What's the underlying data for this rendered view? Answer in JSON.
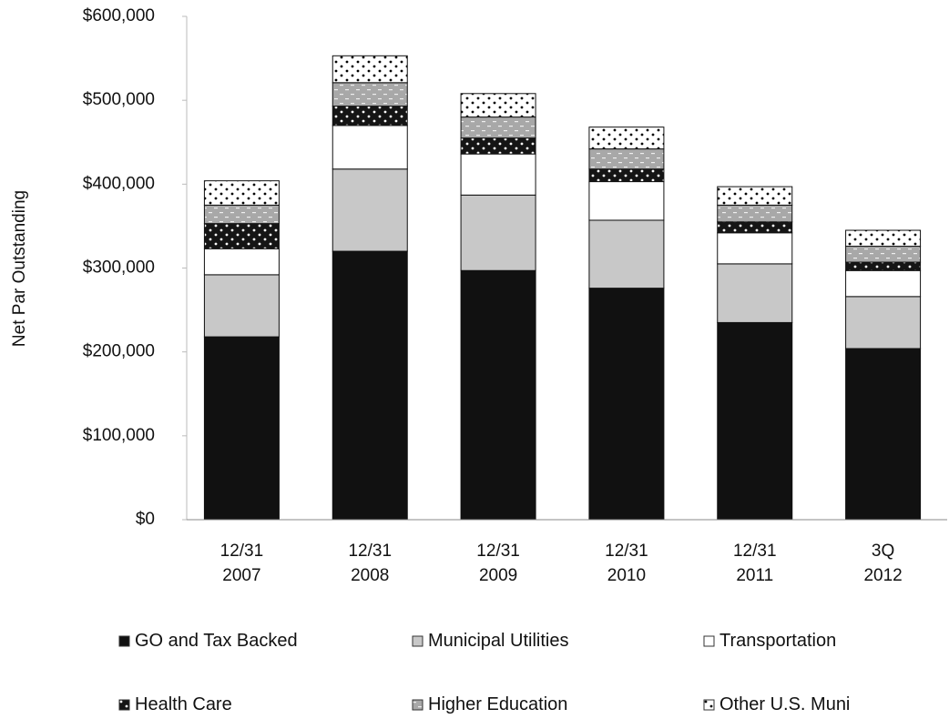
{
  "chart_data": {
    "type": "stacked-bar",
    "y_label": "Net Par Outstanding",
    "categories": [
      "12/31\n2007",
      "12/31\n2008",
      "12/31\n2009",
      "12/31\n2010",
      "12/31\n2011",
      "3Q\n2012"
    ],
    "series": [
      {
        "name": "GO and Tax Backed",
        "color": "#111111",
        "values": [
          218000,
          320000,
          297000,
          276000,
          235000,
          204000
        ]
      },
      {
        "name": "Municipal Utilities",
        "color": "#c8c8c8",
        "values": [
          74000,
          98000,
          90000,
          81000,
          70000,
          62000
        ]
      },
      {
        "name": "Transportation",
        "color": "#ffffff",
        "values": [
          31000,
          52000,
          49000,
          46000,
          37000,
          31000
        ]
      },
      {
        "name": "Health Care",
        "color": "#151515",
        "values": [
          30000,
          23000,
          19000,
          15000,
          13000,
          10000
        ]
      },
      {
        "name": "Higher Education",
        "color": "#a8a8a8",
        "values": [
          22000,
          28000,
          25000,
          24000,
          20000,
          19000
        ]
      },
      {
        "name": "Other U.S. Muni",
        "color": "#ffffff",
        "values": [
          29000,
          32000,
          28000,
          26000,
          22000,
          19000
        ]
      }
    ],
    "ylim": [
      0,
      600000
    ],
    "yticks": [
      {
        "value": 0,
        "label": "$0"
      },
      {
        "value": 100000,
        "label": "$100,000"
      },
      {
        "value": 200000,
        "label": "$200,000"
      },
      {
        "value": 300000,
        "label": "$300,000"
      },
      {
        "value": 400000,
        "label": "$400,000"
      },
      {
        "value": 500000,
        "label": "$500,000"
      },
      {
        "value": 600000,
        "label": "$600,000"
      }
    ],
    "grid": false
  }
}
